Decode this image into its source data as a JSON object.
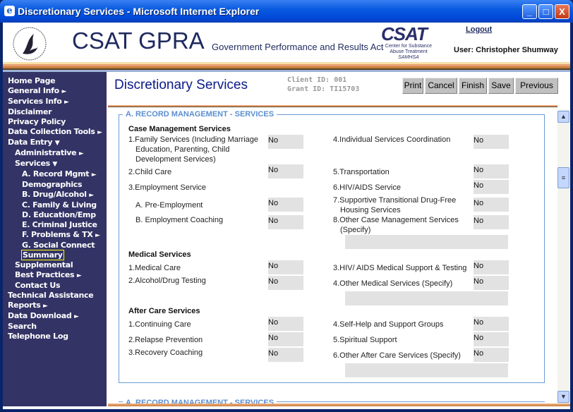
{
  "window": {
    "title": "Discretionary Services - Microsoft Internet Explorer",
    "minimize": "_",
    "maximize": "□",
    "close": "X"
  },
  "header": {
    "app_title": "CSAT GPRA",
    "subtitle": "Government Performance and Results Act",
    "logo_text": "CSAT",
    "logo_sub1": "Center for Substance",
    "logo_sub2": "Abuse Treatment",
    "logo_sub3": "SAMHSA",
    "logout": "Logout",
    "user": "User: Christopher Shumway"
  },
  "sidebar": {
    "items": [
      {
        "label": "Home Page",
        "level": 1
      },
      {
        "label": "General Info",
        "level": 1,
        "arrow": "►"
      },
      {
        "label": "Services Info",
        "level": 1,
        "arrow": "►"
      },
      {
        "label": "Disclaimer",
        "level": 1
      },
      {
        "label": "Privacy Policy",
        "level": 1
      },
      {
        "label": "Data Collection Tools",
        "level": 1,
        "arrow": "►"
      },
      {
        "label": "Data Entry",
        "level": 1,
        "arrow": "▼"
      },
      {
        "label": "Administrative",
        "level": 2,
        "arrow": "►"
      },
      {
        "label": "Services",
        "level": 2,
        "arrow": "▼"
      },
      {
        "label": "A. Record Mgmt",
        "level": 3,
        "arrow": "►"
      },
      {
        "label": "Demographics",
        "level": 3
      },
      {
        "label": "B. Drug/Alcohol",
        "level": 3,
        "arrow": "►"
      },
      {
        "label": "C. Family & Living",
        "level": 3
      },
      {
        "label": "D. Education/Emp",
        "level": 3
      },
      {
        "label": "E. Criminal Justice",
        "level": 3
      },
      {
        "label": "F. Problems & TX",
        "level": 3,
        "arrow": "►"
      },
      {
        "label": "G. Social Connect",
        "level": 3
      },
      {
        "label": "Summary",
        "level": 3,
        "selected": true
      },
      {
        "label": "Supplemental",
        "level": 2
      },
      {
        "label": "Best Practices",
        "level": 2,
        "arrow": "►"
      },
      {
        "label": "Contact Us",
        "level": 2
      },
      {
        "label": "Technical Assistance",
        "level": 1
      },
      {
        "label": "Reports",
        "level": 1,
        "arrow": "►"
      },
      {
        "label": "Data Download",
        "level": 1,
        "arrow": "►"
      },
      {
        "label": "Search",
        "level": 1
      },
      {
        "label": "Telephone Log",
        "level": 1
      }
    ]
  },
  "main": {
    "page_title": "Discretionary Services",
    "client_id": "Client ID: 001",
    "grant_id": "Grant ID: TI15703",
    "buttons": {
      "print": "Print",
      "cancel": "Cancel",
      "finish": "Finish",
      "save": "Save",
      "previous": "Previous"
    },
    "section_legend": "A. RECORD MANAGEMENT - SERVICES",
    "case": {
      "heading": "Case Management Services",
      "l1a": "1.Family Services (Including Marriage",
      "l1b": "Education, Parenting, Child",
      "l1c": "Development Services)",
      "l2": "2.Child Care",
      "l3": "3.Employment Service",
      "la": "A. Pre-Employment",
      "lb": "B. Employment Coaching",
      "r4": "4.Individual Services Coordination",
      "r5": "5.Transportation",
      "r6": "6.HIV/AIDS Service",
      "r7a": "7.Supportive Transitional Drug-Free",
      "r7b": "Housing Services",
      "r8a": "8.Other Case Management Services",
      "r8b": "(Specify)",
      "v1": "No",
      "v2": "No",
      "va": "No",
      "vb": "No",
      "v4": "No",
      "v5": "No",
      "v6": "No",
      "v7": "No",
      "v8": "No",
      "specify": ""
    },
    "medical": {
      "heading": "Medical Services",
      "l1": "1.Medical Care",
      "l2": "2.Alcohol/Drug Testing",
      "r3": "3.HIV/ AIDS Medical Support & Testing",
      "r4": "4.Other Medical Services (Specify)",
      "v1": "No",
      "v2": "No",
      "v3": "No",
      "v4": "No",
      "specify": ""
    },
    "aftercare": {
      "heading": "After Care Services",
      "l1": "1.Continuing Care",
      "l2": "2.Relapse Prevention",
      "l3": "3.Recovery Coaching",
      "r4": "4.Self-Help and Support Groups",
      "r5": "5.Spiritual Support",
      "r6": "6.Other After Care Services (Specify)",
      "v1": "No",
      "v2": "No",
      "v3": "No",
      "v4": "No",
      "v5": "No",
      "v6": "No",
      "specify": ""
    }
  }
}
